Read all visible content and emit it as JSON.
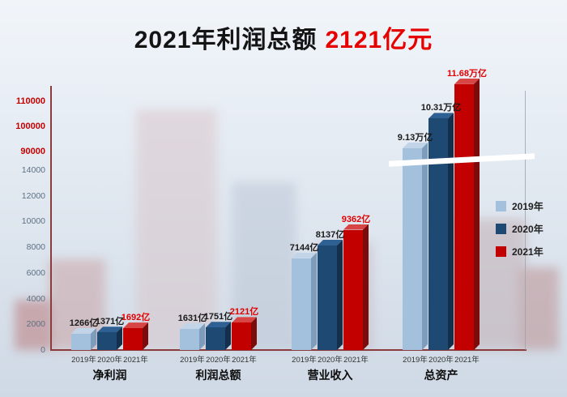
{
  "title": {
    "main": "2021年利润总额",
    "highlight": "2121亿元"
  },
  "chart_data": {
    "type": "bar",
    "title": "2021年利润总额 2121亿元",
    "unit": "亿元",
    "legend_position": "right",
    "series": [
      {
        "name": "2019年",
        "color": "#a3c0dd",
        "side_color": "#7e9dbd",
        "top_color": "#c2d5e8"
      },
      {
        "name": "2020年",
        "color": "#1d4972",
        "side_color": "#132f4b",
        "top_color": "#2e6094"
      },
      {
        "name": "2021年",
        "color": "#c30000",
        "side_color": "#7c0b0b",
        "top_color": "#d84545"
      }
    ],
    "groups": [
      {
        "name": "净利润",
        "values": [
          1266,
          1371,
          1692
        ],
        "value_labels": [
          "1266亿",
          "1371亿",
          "1692亿"
        ]
      },
      {
        "name": "利润总额",
        "values": [
          1631,
          1751,
          2121
        ],
        "value_labels": [
          "1631亿",
          "1751亿",
          "2121亿"
        ]
      },
      {
        "name": "营业收入",
        "values": [
          7144,
          8137,
          9362
        ],
        "value_labels": [
          "7144亿",
          "8137亿",
          "9362亿"
        ]
      },
      {
        "name": "总资产",
        "values": [
          91300,
          103100,
          116800
        ],
        "value_labels": [
          "9.13万亿",
          "10.31万亿",
          "11.68万亿"
        ]
      }
    ],
    "x_tick_labels": [
      "2019年",
      "2020年",
      "2021年"
    ],
    "y_axis": {
      "lower_ticks": [
        0,
        2000,
        4000,
        6000,
        8000,
        10000,
        12000,
        14000
      ],
      "upper_ticks": [
        90000,
        100000,
        110000
      ],
      "axis_break": true,
      "lower_range": [
        0,
        14000
      ],
      "upper_range": [
        90000,
        110000
      ]
    }
  }
}
